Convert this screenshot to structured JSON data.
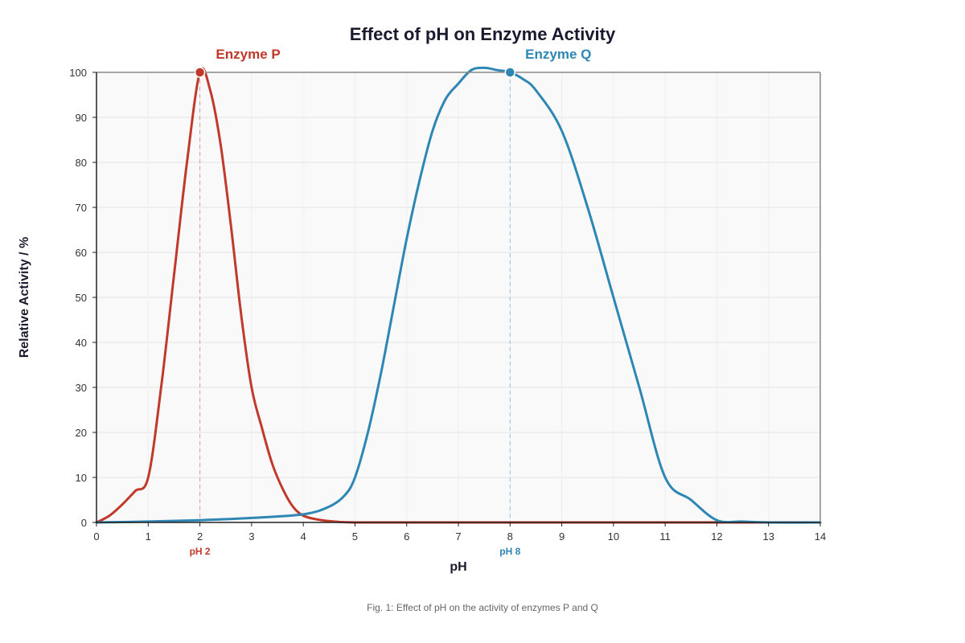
{
  "chart_data": {
    "type": "line",
    "title": "Effect of pH on Enzyme Activity",
    "xlabel": "pH",
    "ylabel": "Relative Activity / %",
    "xlim": [
      0,
      14
    ],
    "ylim": [
      0,
      100
    ],
    "x_ticks": [
      0,
      1,
      2,
      3,
      4,
      5,
      6,
      7,
      8,
      9,
      10,
      11,
      12,
      13,
      14
    ],
    "y_ticks": [
      0,
      10,
      20,
      30,
      40,
      50,
      60,
      70,
      80,
      90,
      100
    ],
    "grid": true,
    "series": [
      {
        "name": "Enzyme P",
        "color": "#c0392b",
        "x": [
          0,
          0.25,
          0.5,
          0.75,
          1,
          1.25,
          1.5,
          1.75,
          2,
          2.2,
          2.4,
          2.6,
          2.8,
          3,
          3.2,
          3.4,
          3.6,
          3.8,
          4,
          4.3,
          4.6,
          5,
          6,
          7,
          8,
          9,
          10,
          11,
          12,
          13,
          14
        ],
        "y": [
          0,
          1.5,
          4,
          7,
          10,
          30,
          55,
          80,
          100,
          96,
          84,
          66,
          46,
          30,
          21,
          13,
          7.5,
          3.5,
          1.5,
          0.6,
          0.2,
          0,
          0,
          0,
          0,
          0,
          0,
          0,
          0,
          0,
          0
        ],
        "optimum": {
          "x": 2,
          "y": 100,
          "label": "pH 2"
        }
      },
      {
        "name": "Enzyme Q",
        "color": "#2e86b5",
        "x": [
          0,
          1,
          2,
          3,
          4,
          4.5,
          4.8,
          5,
          5.25,
          5.5,
          5.75,
          6,
          6.25,
          6.5,
          6.75,
          7,
          7.25,
          7.5,
          7.75,
          8,
          8.25,
          8.5,
          9,
          9.5,
          10,
          10.5,
          11,
          11.5,
          12,
          12.5,
          13,
          14
        ],
        "y": [
          0,
          0.2,
          0.5,
          1,
          1.8,
          3.5,
          6,
          10,
          20,
          33,
          48,
          63,
          76,
          87,
          94,
          97.5,
          100.5,
          101,
          100.5,
          100,
          98.5,
          96,
          87,
          70,
          50,
          30,
          10,
          5,
          0.5,
          0.2,
          0,
          0
        ],
        "optimum": {
          "x": 8,
          "y": 100,
          "label": "pH 8"
        }
      }
    ],
    "caption": "Fig. 1: Effect of pH on the activity of enzymes P and Q"
  }
}
